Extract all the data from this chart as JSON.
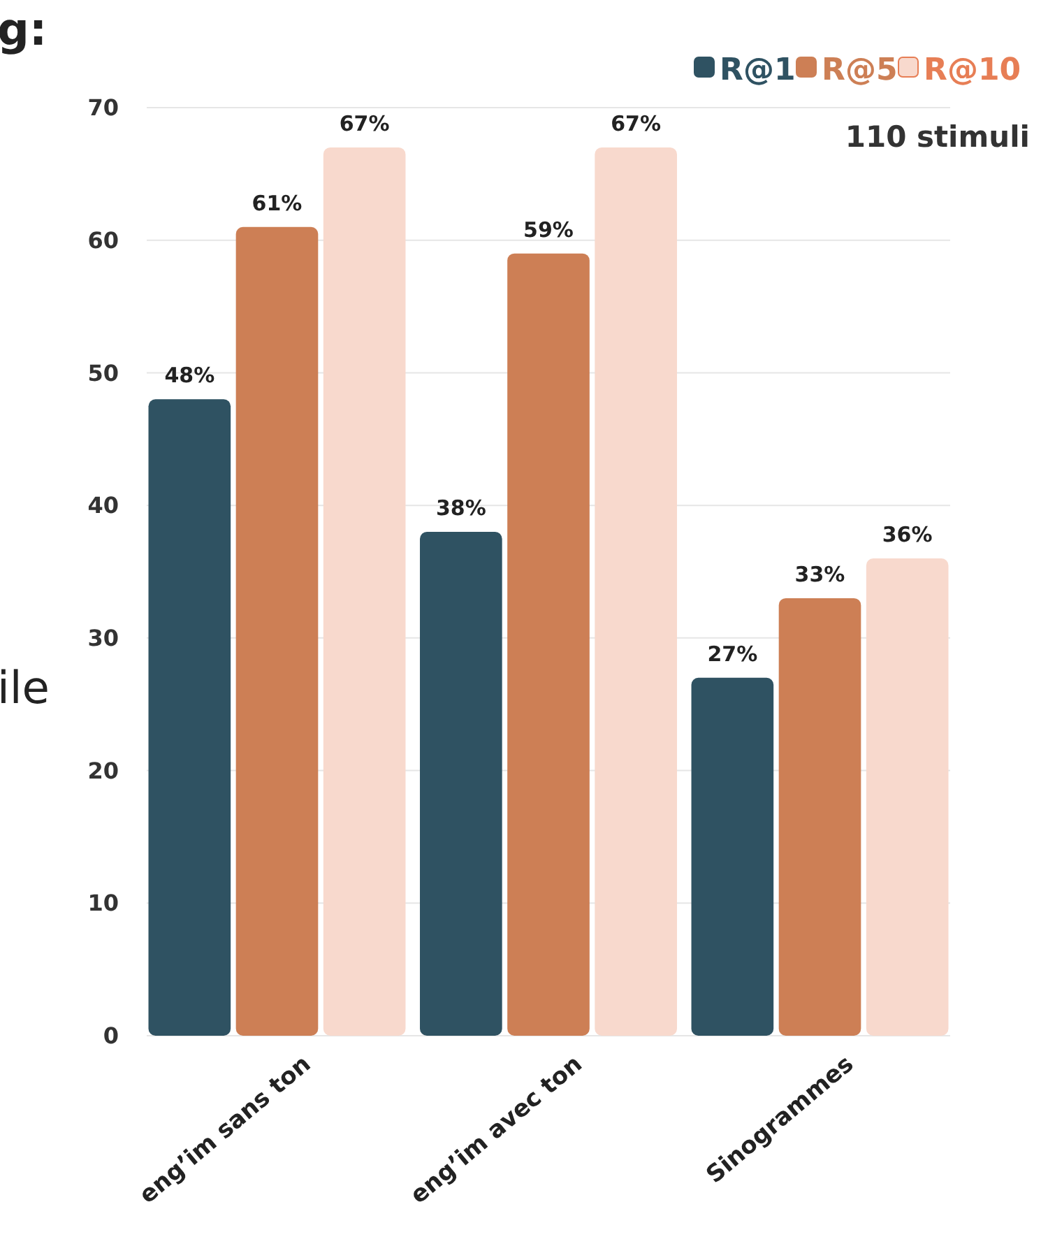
{
  "chart_data": {
    "type": "bar",
    "subtitle": "110 stimuli",
    "categories": [
      "eng’im sans ton",
      "eng’im avec ton",
      "Sinogrammes"
    ],
    "series": [
      {
        "name": "R@1",
        "color": "#2f5262",
        "values": [
          48,
          38,
          27
        ],
        "value_labels": [
          "48%",
          "38%",
          "27%"
        ]
      },
      {
        "name": "R@5",
        "color": "#cd7f55",
        "values": [
          61,
          59,
          33
        ],
        "value_labels": [
          "61%",
          "59%",
          "33%"
        ]
      },
      {
        "name": "R@10",
        "color": "#f8d9cd",
        "values": [
          67,
          67,
          36
        ],
        "value_labels": [
          "67%",
          "67%",
          "36%"
        ]
      }
    ],
    "ylim": [
      0,
      70
    ],
    "yticks": [
      0,
      10,
      20,
      30,
      40,
      50,
      60,
      70
    ],
    "grid": "y",
    "legend": "top right",
    "annotations": [
      "g:",
      "ile"
    ]
  }
}
